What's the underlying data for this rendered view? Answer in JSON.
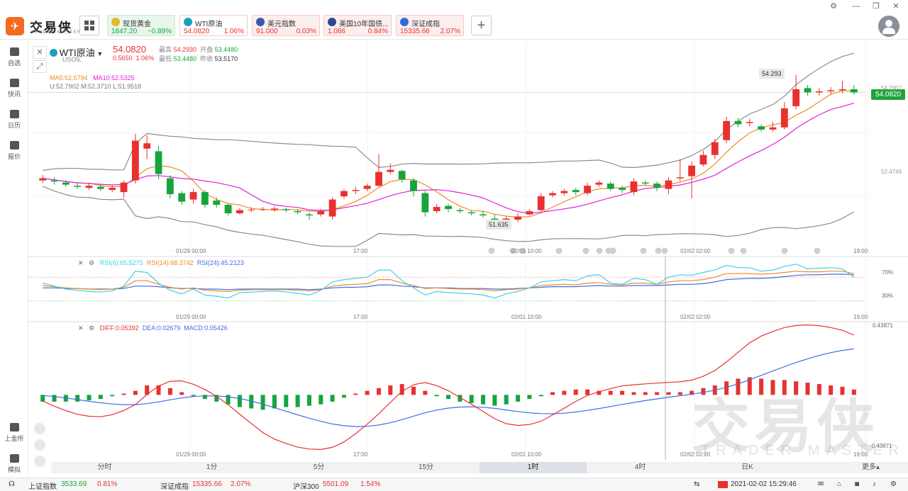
{
  "app": {
    "logo_text": "交易侠",
    "logo_sub": "TRADER MASTER"
  },
  "quotes": [
    {
      "name": "现货黄金",
      "price": "1847.20",
      "change": "−0.89%",
      "dir": "down",
      "icon": "gold-coin-icon"
    },
    {
      "name": "WTI原油",
      "price": "54.0820",
      "change": "1.06%",
      "dir": "up",
      "icon": "oil-icon"
    },
    {
      "name": "美元指数",
      "price": "91.000",
      "change": "0.03%",
      "dir": "up",
      "icon": "us-flag-icon"
    },
    {
      "name": "美国10年国债...",
      "price": "1.086",
      "change": "0.84%",
      "dir": "up",
      "icon": "bond-icon"
    },
    {
      "name": "深证成指",
      "price": "15335.66",
      "change": "2.07%",
      "dir": "up",
      "icon": "szse-icon"
    }
  ],
  "sidebar": [
    {
      "label": "自选",
      "icon": "bookmark-icon"
    },
    {
      "label": "快讯",
      "icon": "news-icon"
    },
    {
      "label": "日历",
      "icon": "calendar-icon"
    },
    {
      "label": "报价",
      "icon": "quote-icon"
    },
    {
      "label": "上金所",
      "icon": "exchange-icon"
    },
    {
      "label": "模拟",
      "icon": "wallet-icon"
    }
  ],
  "symbol": {
    "name": "WTI原油",
    "code": "USOIL",
    "price": "54.0820",
    "change": "0.5650",
    "change_pct": "1.06%",
    "high_label": "最高",
    "high": "54.2930",
    "open_label": "开盘",
    "open": "53.4480",
    "low_label": "最低",
    "low": "53.4480",
    "prev_label": "昨收",
    "prev": "53.5170"
  },
  "indicators": {
    "ma5": "MA5:52.5794",
    "ma10": "MA10:52.5325",
    "boll": "U:52.7902  M:52.3710  L:51.9518",
    "rsi6": "RSI(6):65.5275",
    "rsi14": "RSI(14):68.3742",
    "rsi24": "RSI(24):45.2123",
    "diff": "DIFF:0.05392",
    "dea": "DEA:0.02679",
    "macd": "MACD:0.05426"
  },
  "price_badge": "54.0820",
  "annotations": {
    "high": "54.293",
    "low": "51.635"
  },
  "axes": {
    "price_ticks": [
      "54.2907",
      "52.4749"
    ],
    "rsi_ticks": [
      "70%",
      "30%"
    ],
    "macd_ticks": [
      "0.43871",
      "-0.43871"
    ],
    "time_labels": [
      "01/29 00:00",
      "17:00",
      "02/01 10:00",
      "02/02 02:00",
      "19:00"
    ]
  },
  "tabs": [
    "分时",
    "1分",
    "5分",
    "15分",
    "1时",
    "4时",
    "日K",
    "更多▴"
  ],
  "active_tab": "1时",
  "watermark": {
    "cn": "交易侠",
    "en": "TRADER MASTER"
  },
  "status": {
    "sh_name": "上证指数",
    "sh_price": "3533.69",
    "sh_chg": "0.81%",
    "sz_name": "深证成指",
    "sz_price": "15335.66",
    "sz_chg": "2.07%",
    "hs_name": "沪深300",
    "hs_price": "5501.09",
    "hs_chg": "1.54%",
    "datetime": "2021-02-02 15:29:46"
  },
  "colors": {
    "up": "#e8312f",
    "down": "#16a53c",
    "ma5": "#f08a24",
    "ma10": "#e020d8",
    "boll": "#8c8c8c",
    "rsi6": "#3fd0e8",
    "rsi14": "#f08a24",
    "rsi24": "#3a6fe8",
    "diff": "#e8312f",
    "dea": "#3a6fe8"
  },
  "chart_data": {
    "type": "candlestick",
    "title": "WTI原油 1时",
    "candles": [
      [
        52.3,
        52.34,
        52.4,
        52.25
      ],
      [
        52.3,
        52.28,
        52.36,
        52.22
      ],
      [
        52.26,
        52.22,
        52.3,
        52.18
      ],
      [
        52.2,
        52.18,
        52.25,
        52.14
      ],
      [
        52.16,
        52.2,
        52.26,
        52.12
      ],
      [
        52.18,
        52.14,
        52.24,
        52.1
      ],
      [
        52.12,
        52.16,
        52.22,
        52.08
      ],
      [
        52.08,
        52.26,
        52.3,
        51.98
      ],
      [
        52.3,
        53.05,
        53.18,
        52.24
      ],
      [
        52.9,
        53.0,
        53.15,
        52.7
      ],
      [
        52.85,
        52.42,
        52.95,
        52.32
      ],
      [
        52.34,
        52.04,
        52.4,
        51.96
      ],
      [
        52.06,
        51.9,
        52.1,
        51.84
      ],
      [
        51.94,
        52.08,
        52.14,
        51.86
      ],
      [
        52.08,
        51.84,
        52.12,
        51.78
      ],
      [
        51.92,
        51.84,
        51.98,
        51.78
      ],
      [
        51.84,
        51.68,
        51.86,
        51.64
      ],
      [
        51.68,
        51.74,
        51.78,
        51.66
      ],
      [
        51.74,
        51.75,
        51.8,
        51.7
      ],
      [
        51.76,
        51.76,
        51.8,
        51.72
      ],
      [
        51.75,
        51.77,
        51.81,
        51.71
      ],
      [
        51.76,
        51.74,
        51.79,
        51.7
      ],
      [
        51.72,
        51.7,
        51.76,
        51.66
      ],
      [
        51.66,
        51.64,
        51.7,
        51.56
      ],
      [
        51.66,
        51.72,
        51.76,
        51.62
      ],
      [
        51.62,
        51.94,
        51.98,
        51.56
      ],
      [
        52.0,
        52.1,
        52.14,
        51.96
      ],
      [
        52.1,
        52.12,
        52.18,
        52.04
      ],
      [
        52.14,
        52.2,
        52.24,
        52.1
      ],
      [
        52.2,
        52.46,
        52.8,
        52.18
      ],
      [
        52.46,
        52.5,
        52.62,
        52.42
      ],
      [
        52.48,
        52.32,
        52.5,
        52.26
      ],
      [
        52.3,
        52.1,
        52.34,
        52.0
      ],
      [
        52.06,
        51.7,
        52.1,
        51.62
      ],
      [
        51.72,
        51.8,
        51.86,
        51.68
      ],
      [
        51.82,
        51.76,
        51.86,
        51.7
      ],
      [
        51.74,
        51.72,
        51.78,
        51.68
      ],
      [
        51.7,
        51.68,
        51.74,
        51.64
      ],
      [
        51.66,
        51.64,
        51.72,
        51.6
      ],
      [
        51.58,
        51.52,
        51.66,
        51.4
      ],
      [
        51.52,
        51.58,
        51.62,
        51.48
      ],
      [
        51.56,
        51.62,
        51.68,
        51.52
      ],
      [
        51.66,
        51.72,
        51.76,
        51.64
      ],
      [
        51.74,
        52.0,
        52.06,
        51.72
      ],
      [
        52.02,
        52.06,
        52.1,
        51.98
      ],
      [
        52.06,
        52.1,
        52.14,
        52.02
      ],
      [
        52.12,
        52.08,
        52.16,
        52.02
      ],
      [
        52.06,
        52.2,
        52.26,
        52.02
      ],
      [
        52.22,
        52.26,
        52.3,
        52.18
      ],
      [
        52.24,
        52.14,
        52.28,
        52.1
      ],
      [
        52.16,
        52.12,
        52.2,
        52.06
      ],
      [
        52.08,
        52.28,
        52.34,
        52.02
      ],
      [
        52.26,
        52.24,
        52.3,
        52.2
      ],
      [
        52.24,
        52.16,
        52.28,
        52.1
      ],
      [
        52.14,
        52.3,
        52.36,
        52.04
      ],
      [
        52.34,
        52.36,
        52.7,
        52.28
      ],
      [
        52.38,
        52.58,
        52.66,
        51.96
      ],
      [
        52.6,
        52.78,
        52.86,
        52.56
      ],
      [
        52.78,
        53.02,
        53.08,
        52.7
      ],
      [
        53.06,
        53.42,
        53.5,
        53.0
      ],
      [
        53.42,
        53.36,
        53.48,
        53.3
      ],
      [
        53.38,
        53.4,
        53.46,
        53.32
      ],
      [
        53.32,
        53.26,
        53.36,
        53.22
      ],
      [
        53.26,
        53.3,
        53.4,
        53.22
      ],
      [
        53.3,
        53.66,
        53.78,
        53.26
      ],
      [
        53.7,
        54.02,
        54.29,
        53.64
      ],
      [
        54.04,
        53.96,
        54.1,
        53.9
      ],
      [
        53.96,
        53.98,
        54.04,
        53.9
      ],
      [
        53.98,
        54.0,
        54.06,
        53.92
      ],
      [
        54.0,
        54.02,
        54.18,
        53.94
      ],
      [
        54.02,
        53.96,
        54.1,
        53.92
      ]
    ],
    "ylim": [
      51.2,
      54.7
    ],
    "rsi": {
      "rsi6": [
        60,
        55,
        50,
        48,
        46,
        45,
        47,
        55,
        80,
        78,
        60,
        48,
        42,
        50,
        40,
        38,
        35,
        44,
        45,
        46,
        47,
        45,
        43,
        40,
        48,
        62,
        66,
        68,
        70,
        82,
        82,
        64,
        52,
        40,
        46,
        44,
        43,
        42,
        40,
        35,
        42,
        46,
        52,
        62,
        64,
        66,
        64,
        72,
        74,
        60,
        58,
        68,
        66,
        58,
        70,
        74,
        73,
        78,
        82,
        90,
        86,
        86,
        80,
        82,
        88,
        92,
        84,
        85,
        86,
        84,
        70
      ],
      "rsi14": [
        56,
        54,
        52,
        51,
        50,
        49,
        50,
        53,
        64,
        64,
        58,
        53,
        50,
        52,
        48,
        47,
        46,
        48,
        49,
        49,
        49,
        49,
        48,
        47,
        49,
        55,
        57,
        58,
        59,
        66,
        66,
        60,
        56,
        51,
        52,
        51,
        50,
        50,
        49,
        47,
        49,
        50,
        52,
        56,
        57,
        58,
        57,
        60,
        61,
        58,
        57,
        60,
        60,
        58,
        62,
        64,
        64,
        66,
        70,
        76,
        76,
        76,
        75,
        76,
        78,
        80,
        79,
        79,
        80,
        80,
        76
      ],
      "rsi24": [
        52,
        52,
        51,
        51,
        50,
        50,
        50,
        51,
        55,
        55,
        54,
        52,
        51,
        51,
        50,
        50,
        49,
        50,
        50,
        50,
        50,
        50,
        50,
        49,
        50,
        52,
        53,
        53,
        54,
        57,
        57,
        55,
        54,
        52,
        52,
        52,
        51,
        51,
        51,
        50,
        50,
        51,
        52,
        53,
        54,
        54,
        54,
        55,
        56,
        55,
        55,
        56,
        56,
        56,
        57,
        58,
        58,
        59,
        62,
        66,
        67,
        68,
        68,
        69,
        71,
        73,
        74,
        74,
        75,
        75,
        74
      ]
    },
    "macd": {
      "hist": [
        -0.05,
        -0.05,
        -0.05,
        -0.05,
        -0.04,
        -0.03,
        -0.01,
        0.01,
        0.03,
        0.07,
        0.07,
        0.05,
        0.02,
        -0.01,
        -0.03,
        -0.05,
        -0.07,
        -0.09,
        -0.1,
        -0.11,
        -0.1,
        -0.09,
        -0.09,
        -0.08,
        -0.07,
        -0.05,
        -0.02,
        0.01,
        0.03,
        0.05,
        0.07,
        0.08,
        0.06,
        0.03,
        -0.01,
        -0.03,
        -0.05,
        -0.06,
        -0.07,
        -0.08,
        -0.07,
        -0.05,
        -0.03,
        -0.01,
        0.02,
        0.03,
        0.04,
        0.04,
        0.03,
        0.03,
        0.03,
        0.02,
        0.02,
        0.02,
        0.02,
        0.02,
        0.03,
        0.05,
        0.07,
        0.1,
        0.12,
        0.13,
        0.12,
        0.11,
        0.11,
        0.1,
        0.09,
        0.08,
        0.07,
        0.06,
        0.04
      ],
      "ylim": [
        -0.43871,
        0.43871
      ]
    }
  }
}
